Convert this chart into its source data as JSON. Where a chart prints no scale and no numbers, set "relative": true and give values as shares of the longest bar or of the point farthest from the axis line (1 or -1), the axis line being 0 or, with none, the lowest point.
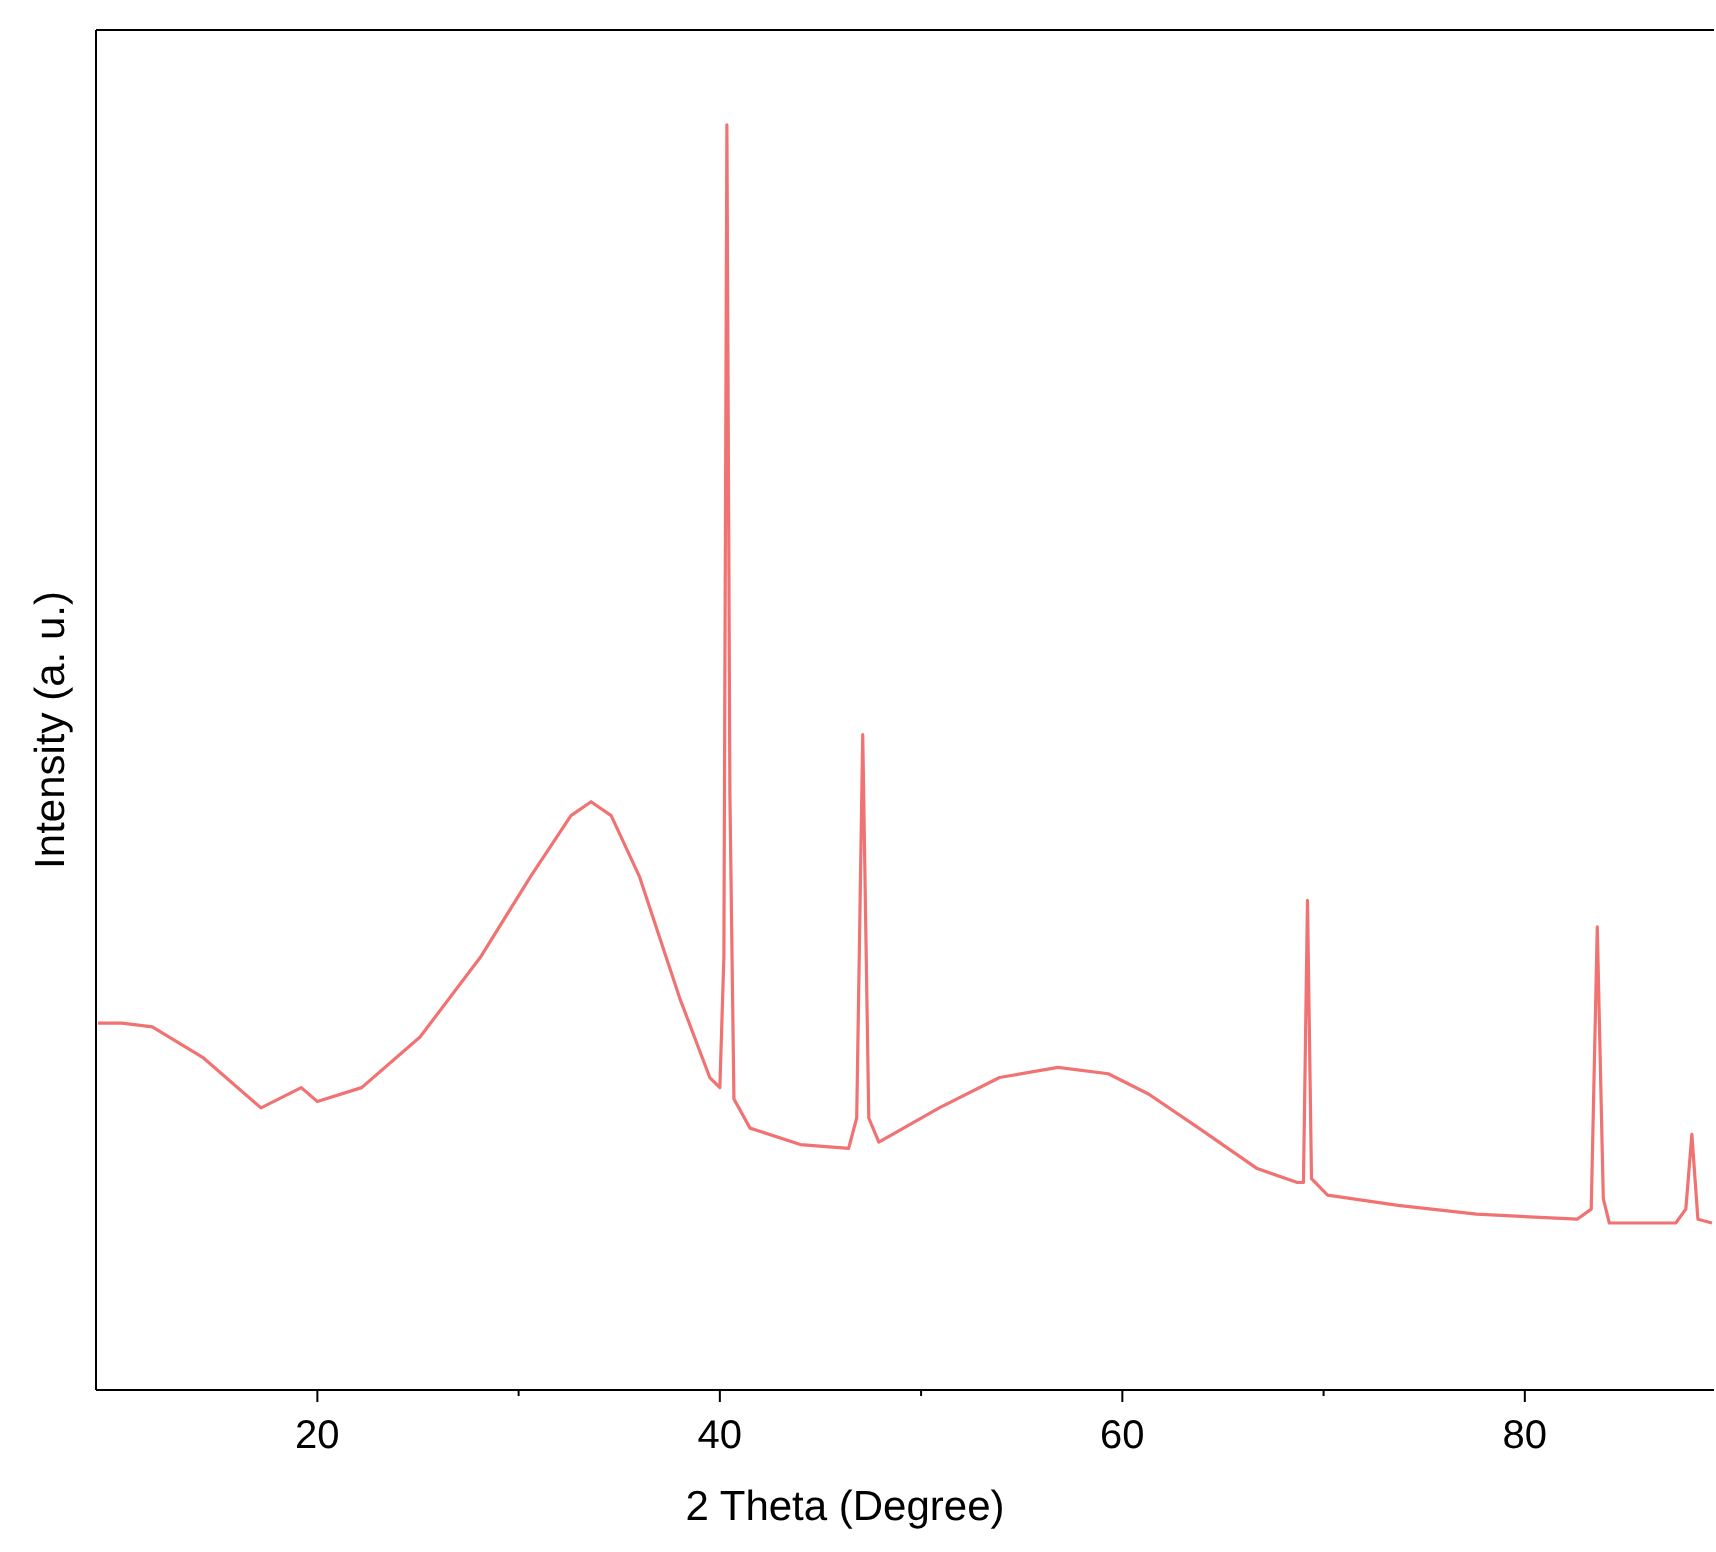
{
  "chart_data": {
    "type": "line",
    "xlabel": "2 Theta (Degree)",
    "ylabel": "Intensity (a. u.)",
    "relative": true,
    "xlim": [
      9,
      89.4
    ],
    "xticks": [
      20,
      {
        "value": 30,
        "label": null
      },
      40,
      {
        "value": 50,
        "label": null
      },
      60,
      {
        "value": 70,
        "label": null
      },
      80
    ],
    "grid": false,
    "marker": "none",
    "line_style": "solid",
    "x": [
      9.1,
      10.3,
      11.8,
      14.3,
      17.2,
      19.2,
      20,
      22.2,
      25.1,
      28.1,
      30.6,
      32.6,
      33.6,
      34.6,
      36,
      38,
      39.5,
      40,
      40.2,
      40.35,
      40.5,
      40.7,
      41.5,
      44,
      46.4,
      46.8,
      47.1,
      47.4,
      47.9,
      50.9,
      53.9,
      56.8,
      59.3,
      61.3,
      63.8,
      66.7,
      68.7,
      69,
      69.2,
      69.4,
      70.2,
      73.7,
      77.6,
      82.6,
      83.3,
      83.6,
      83.9,
      84.2,
      87.5,
      88,
      88.3,
      88.6,
      89.3
    ],
    "series": [
      {
        "color": "#f07272",
        "values": [
          0.29,
          0.29,
          0.287,
          0.263,
          0.223,
          0.239,
          0.228,
          0.239,
          0.279,
          0.342,
          0.406,
          0.454,
          0.465,
          0.454,
          0.406,
          0.31,
          0.247,
          0.239,
          0.342,
          1.0,
          0.47,
          0.23,
          0.207,
          0.194,
          0.191,
          0.215,
          0.518,
          0.215,
          0.196,
          0.223,
          0.247,
          0.255,
          0.25,
          0.234,
          0.207,
          0.175,
          0.164,
          0.164,
          0.387,
          0.167,
          0.154,
          0.146,
          0.139,
          0.135,
          0.143,
          0.366,
          0.151,
          0.132,
          0.132,
          0.143,
          0.202,
          0.135,
          0.132
        ]
      }
    ]
  }
}
